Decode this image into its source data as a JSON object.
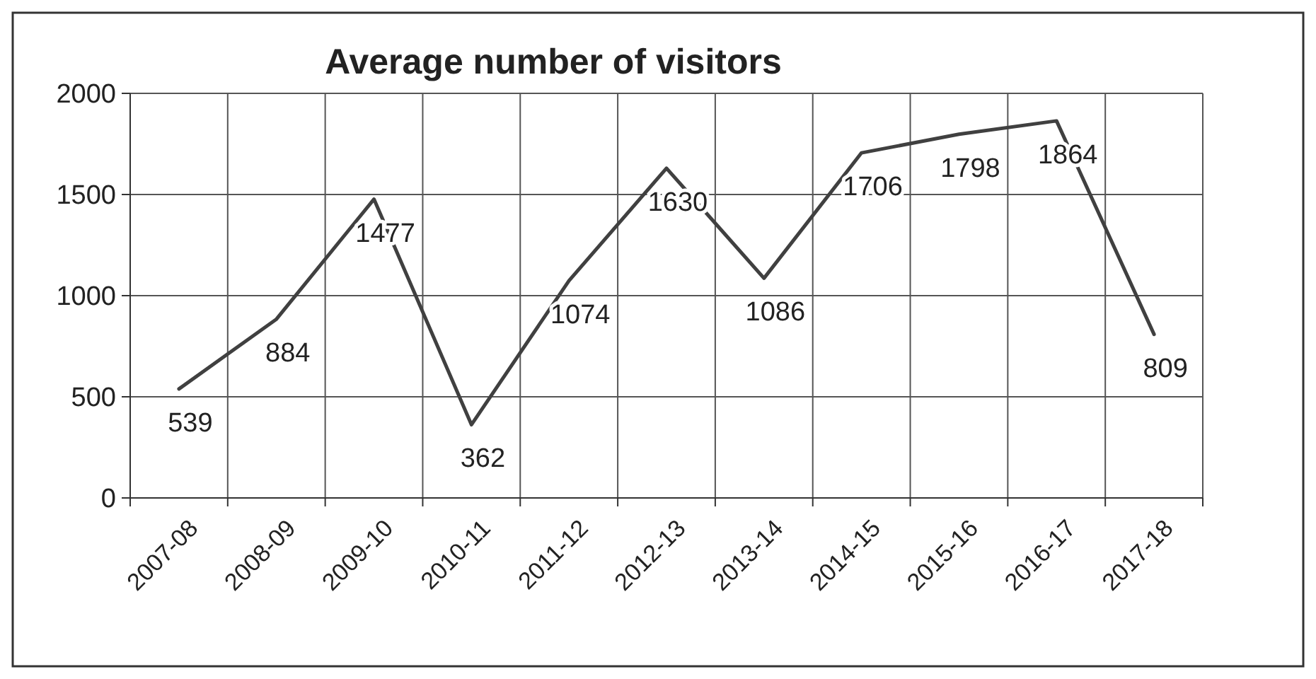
{
  "chart_data": {
    "type": "line",
    "title": "Average number of visitors",
    "categories": [
      "2007-08",
      "2008-09",
      "2009-10",
      "2010-11",
      "2011-12",
      "2012-13",
      "2013-14",
      "2014-15",
      "2015-16",
      "2016-17",
      "2017-18"
    ],
    "series": [
      {
        "color": "#404040",
        "values": [
          539,
          884,
          1477,
          362,
          1074,
          1630,
          1086,
          1706,
          1798,
          1864,
          809
        ]
      }
    ],
    "ylim": [
      0,
      2000
    ],
    "yticks": [
      0,
      500,
      1000,
      1500,
      2000
    ],
    "grid": true,
    "data_labels": true,
    "marker": "none",
    "line_style": "solid"
  }
}
